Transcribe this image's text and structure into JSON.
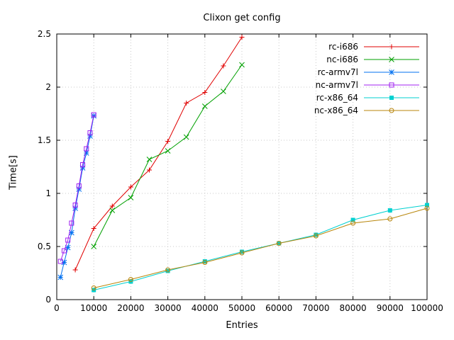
{
  "chart": {
    "title": "Clixon get config",
    "xlabel": "Entries",
    "ylabel": "Time[s]"
  },
  "chart_data": {
    "type": "line",
    "title": "Clixon get config",
    "xlabel": "Entries",
    "ylabel": "Time[s]",
    "xlim": [
      0,
      100000
    ],
    "ylim": [
      0,
      2.5
    ],
    "grid": true,
    "legend_position": "top-right",
    "x_tick_values": [
      0,
      10000,
      20000,
      30000,
      40000,
      50000,
      60000,
      70000,
      80000,
      90000,
      100000
    ],
    "x_tick_labels": [
      "0",
      "10000",
      "20000",
      "30000",
      "40000",
      "50000",
      "60000",
      "70000",
      "80000",
      "90000",
      "100000"
    ],
    "y_tick_values": [
      0,
      0.5,
      1,
      1.5,
      2,
      2.5
    ],
    "y_tick_labels": [
      "0",
      "0.5",
      "1",
      "1.5",
      "2",
      "2.5"
    ],
    "series": [
      {
        "name": "rc-i686",
        "color": "#e00000",
        "marker": "plus",
        "points": [
          [
            5000,
            0.28
          ],
          [
            10000,
            0.67
          ],
          [
            15000,
            0.88
          ],
          [
            20000,
            1.06
          ],
          [
            25000,
            1.22
          ],
          [
            30000,
            1.49
          ],
          [
            35000,
            1.85
          ],
          [
            40000,
            1.95
          ],
          [
            45000,
            2.2
          ],
          [
            50000,
            2.47
          ]
        ]
      },
      {
        "name": "nc-i686",
        "color": "#00a000",
        "marker": "cross",
        "points": [
          [
            10000,
            0.5
          ],
          [
            15000,
            0.84
          ],
          [
            20000,
            0.96
          ],
          [
            25000,
            1.32
          ],
          [
            30000,
            1.4
          ],
          [
            35000,
            1.53
          ],
          [
            40000,
            1.82
          ],
          [
            45000,
            1.96
          ],
          [
            50000,
            2.21
          ]
        ]
      },
      {
        "name": "rc-armv7l",
        "color": "#0070f0",
        "marker": "asterisk",
        "points": [
          [
            1000,
            0.21
          ],
          [
            2000,
            0.35
          ],
          [
            3000,
            0.49
          ],
          [
            4000,
            0.63
          ],
          [
            5000,
            0.86
          ],
          [
            6000,
            1.04
          ],
          [
            7000,
            1.24
          ],
          [
            8000,
            1.38
          ],
          [
            9000,
            1.54
          ],
          [
            10000,
            1.73
          ]
        ]
      },
      {
        "name": "nc-armv7l",
        "color": "#a020f0",
        "marker": "square-open",
        "points": [
          [
            1000,
            0.36
          ],
          [
            2000,
            0.46
          ],
          [
            3000,
            0.56
          ],
          [
            4000,
            0.72
          ],
          [
            5000,
            0.89
          ],
          [
            6000,
            1.07
          ],
          [
            7000,
            1.27
          ],
          [
            8000,
            1.42
          ],
          [
            9000,
            1.57
          ],
          [
            10000,
            1.74
          ]
        ]
      },
      {
        "name": "rc-x86_64",
        "color": "#00d0d0",
        "marker": "square-filled",
        "points": [
          [
            10000,
            0.09
          ],
          [
            20000,
            0.17
          ],
          [
            30000,
            0.27
          ],
          [
            40000,
            0.36
          ],
          [
            50000,
            0.45
          ],
          [
            60000,
            0.53
          ],
          [
            70000,
            0.61
          ],
          [
            80000,
            0.75
          ],
          [
            90000,
            0.84
          ],
          [
            100000,
            0.89
          ]
        ]
      },
      {
        "name": "nc-x86_64",
        "color": "#b8860b",
        "marker": "circle-open",
        "points": [
          [
            10000,
            0.11
          ],
          [
            20000,
            0.19
          ],
          [
            30000,
            0.28
          ],
          [
            40000,
            0.35
          ],
          [
            50000,
            0.44
          ],
          [
            60000,
            0.53
          ],
          [
            70000,
            0.6
          ],
          [
            80000,
            0.72
          ],
          [
            90000,
            0.76
          ],
          [
            100000,
            0.86
          ]
        ]
      }
    ]
  }
}
